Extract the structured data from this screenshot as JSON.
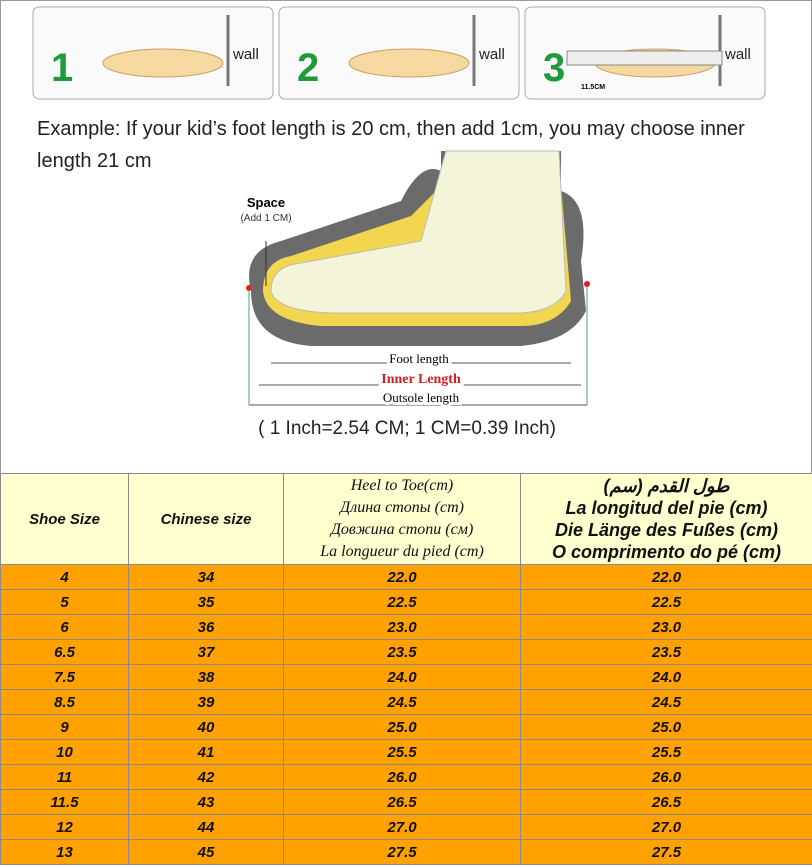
{
  "steps": [
    {
      "number": "1",
      "label": "wall"
    },
    {
      "number": "2",
      "label": "wall"
    },
    {
      "number": "3",
      "label": "wall"
    }
  ],
  "ruler_label": "11.5CM",
  "example": "Example: If your kid’s foot length is 20 cm, then add 1cm, you may choose inner length 21 cm",
  "diagram": {
    "space": "Space",
    "add": "(Add 1 CM)",
    "foot_length": "Foot length",
    "inner_length": "Inner Length",
    "outsole_length": "Outsole length"
  },
  "conversion": "( 1 Inch=2.54 CM; 1 CM=0.39 Inch)",
  "table": {
    "header": [
      "Shoe Size",
      "Chinese size",
      [
        "Heel to Toe(cm)",
        "Длина стопы (cm)",
        "Довжина стопи (см)",
        "La longueur du pied (cm)"
      ],
      [
        "(طول القدم (سم",
        "La longitud del pie (cm)",
        "Die Länge des Fußes (cm)",
        "O comprimento do pé (cm)"
      ]
    ],
    "rows": [
      [
        "4",
        "34",
        "22.0",
        "22.0"
      ],
      [
        "5",
        "35",
        "22.5",
        "22.5"
      ],
      [
        "6",
        "36",
        "23.0",
        "23.0"
      ],
      [
        "6.5",
        "37",
        "23.5",
        "23.5"
      ],
      [
        "7.5",
        "38",
        "24.0",
        "24.0"
      ],
      [
        "8.5",
        "39",
        "24.5",
        "24.5"
      ],
      [
        "9",
        "40",
        "25.0",
        "25.0"
      ],
      [
        "10",
        "41",
        "25.5",
        "25.5"
      ],
      [
        "11",
        "42",
        "26.0",
        "26.0"
      ],
      [
        "11.5",
        "43",
        "26.5",
        "26.5"
      ],
      [
        "12",
        "44",
        "27.0",
        "27.0"
      ],
      [
        "13",
        "45",
        "27.5",
        "27.5"
      ]
    ]
  }
}
